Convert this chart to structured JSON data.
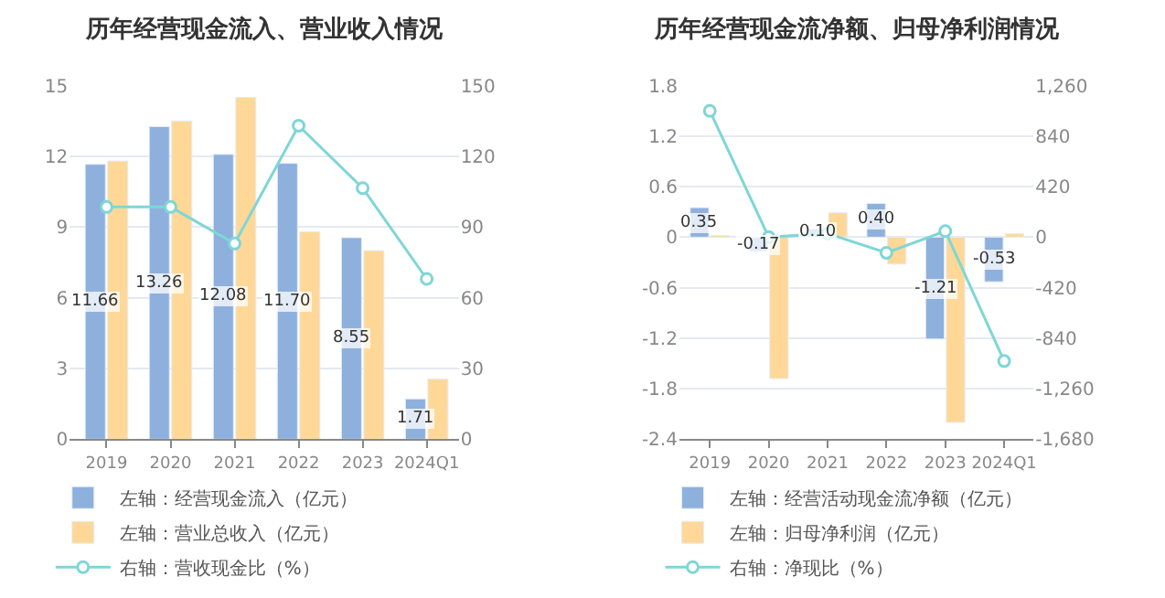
{
  "chart_data": [
    {
      "type": "bar",
      "title": "历年经营现金流入、营业收入情况",
      "categories": [
        "2019",
        "2020",
        "2021",
        "2022",
        "2023",
        "2024Q1"
      ],
      "series": [
        {
          "name": "左轴：经营现金流入（亿元）",
          "color": "#8eb0dd",
          "values": [
            11.66,
            13.26,
            12.08,
            11.7,
            8.55,
            1.71
          ],
          "value_labels": [
            "11.66",
            "13.26",
            "12.08",
            "11.70",
            "8.55",
            "1.71"
          ]
        },
        {
          "name": "左轴：营业总收入（亿元）",
          "color": "#ffd898",
          "values": [
            11.8,
            13.5,
            14.5,
            8.8,
            8.0,
            2.55
          ]
        },
        {
          "name": "右轴：营收现金比（%）",
          "type": "line",
          "axis": "y2",
          "marker": "circle",
          "color": "#7fd6d6",
          "values": [
            98.5,
            98.5,
            83,
            133,
            106.5,
            68
          ]
        }
      ],
      "ylim": [
        0,
        15
      ],
      "yticks": [
        0,
        3,
        6,
        9,
        12,
        15
      ],
      "y2lim": [
        0,
        150
      ],
      "y2ticks": [
        0,
        30,
        60,
        90,
        120,
        150
      ],
      "grid": "y",
      "legend": "bottom"
    },
    {
      "type": "bar",
      "title": "历年经营现金流净额、归母净利润情况",
      "categories": [
        "2019",
        "2020",
        "2021",
        "2022",
        "2023",
        "2024Q1"
      ],
      "series": [
        {
          "name": "左轴：经营活动现金流净额（亿元）",
          "color": "#8eb0dd",
          "values": [
            0.35,
            -0.17,
            0.1,
            0.4,
            -1.21,
            -0.53
          ],
          "value_labels": [
            "0.35",
            "-0.17",
            "0.10",
            "0.40",
            "-1.21",
            "-0.53"
          ]
        },
        {
          "name": "左轴：归母净利润（亿元）",
          "color": "#ffd898",
          "values": [
            0.02,
            -1.68,
            0.29,
            -0.32,
            -2.2,
            0.04
          ]
        },
        {
          "name": "右轴：净现比（%）",
          "type": "line",
          "axis": "y2",
          "marker": "circle",
          "color": "#7fd6d6",
          "values": [
            1050,
            0,
            30,
            -130,
            50,
            -1030
          ]
        }
      ],
      "ylim": [
        -2.4,
        1.8
      ],
      "yticks": [
        -2.4,
        -1.8,
        -1.2,
        -0.6,
        0,
        0.6,
        1.2,
        1.8
      ],
      "y2lim": [
        -1680,
        1260
      ],
      "y2ticks": [
        {
          "value": -1680,
          "label": "-1,680"
        },
        {
          "value": -1260,
          "label": "-1,260"
        },
        -840,
        -420,
        0,
        420,
        840,
        {
          "value": 1260,
          "label": "1,260"
        }
      ],
      "grid": "y",
      "legend": "bottom"
    }
  ]
}
